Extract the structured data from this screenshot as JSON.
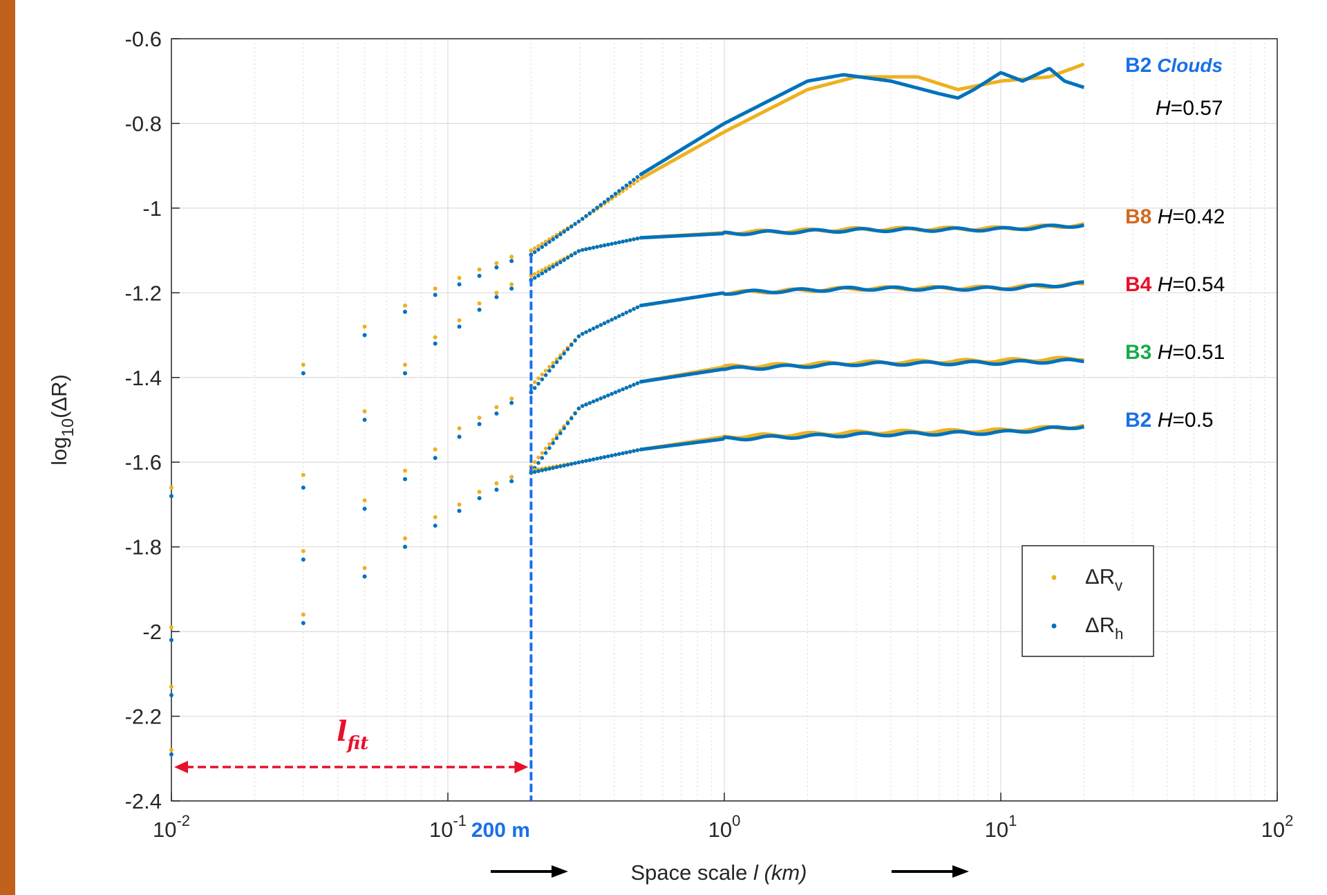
{
  "colors": {
    "sidebar": "#c0601a",
    "v_series": "#edb120",
    "h_series": "#0072bd",
    "label_b2": "#1a6fe8",
    "label_b8": "#d2691e",
    "label_b4": "#e8102a",
    "label_b3": "#1aaa4a",
    "cutoff": "#1a6fe8",
    "lfit": "#e8102a"
  },
  "chart_data": {
    "type": "scatter",
    "xscale": "log",
    "xlim": [
      0.01,
      100
    ],
    "ylim": [
      -2.4,
      -0.6
    ],
    "grid": true,
    "xlabel": "Space scale",
    "xlabel_var": "l",
    "xlabel_unit": "(km)",
    "ylabel": "log",
    "ylabel_sub": "10",
    "ylabel_arg": "(ΔR)",
    "x_tick_labels": [
      {
        "value": 0.01,
        "base": "10",
        "exp": "-2"
      },
      {
        "value": 0.1,
        "base": "10",
        "exp": "-1"
      },
      {
        "value": 1,
        "base": "10",
        "exp": "0"
      },
      {
        "value": 10,
        "base": "10",
        "exp": "1"
      },
      {
        "value": 100,
        "base": "10",
        "exp": "2"
      }
    ],
    "y_ticks": [
      "-0.6",
      "-0.8",
      "-1",
      "-1.2",
      "-1.4",
      "-1.6",
      "-1.8",
      "-2",
      "-2.2",
      "-2.4"
    ],
    "legend": {
      "placement": "lower-right",
      "entries": [
        {
          "base": "ΔR",
          "sub": "v",
          "series": "v"
        },
        {
          "base": "ΔR",
          "sub": "h",
          "series": "h"
        }
      ]
    },
    "cutoff": {
      "x": 0.2,
      "label": "200 m"
    },
    "lfit": {
      "x_from": 0.01,
      "x_to": 0.2,
      "y": -2.32,
      "label_main": "l",
      "label_sub": "fit"
    },
    "series": [
      {
        "band": "B2",
        "desc": "Clouds",
        "H": "0.57",
        "v": [
          [
            0.01,
            -1.66
          ],
          [
            0.03,
            -1.37
          ],
          [
            0.05,
            -1.28
          ],
          [
            0.07,
            -1.23
          ],
          [
            0.09,
            -1.19
          ],
          [
            0.11,
            -1.165
          ],
          [
            0.13,
            -1.145
          ],
          [
            0.15,
            -1.13
          ],
          [
            0.17,
            -1.115
          ],
          [
            0.2,
            -1.1
          ],
          [
            0.3,
            -1.03
          ],
          [
            0.5,
            -0.93
          ],
          [
            1,
            -0.82
          ],
          [
            2,
            -0.72
          ],
          [
            3,
            -0.69
          ],
          [
            5,
            -0.69
          ],
          [
            7,
            -0.72
          ],
          [
            10,
            -0.7
          ],
          [
            15,
            -0.69
          ],
          [
            20,
            -0.66
          ]
        ],
        "h": [
          [
            0.01,
            -1.68
          ],
          [
            0.03,
            -1.39
          ],
          [
            0.05,
            -1.3
          ],
          [
            0.07,
            -1.245
          ],
          [
            0.09,
            -1.205
          ],
          [
            0.11,
            -1.18
          ],
          [
            0.13,
            -1.16
          ],
          [
            0.15,
            -1.14
          ],
          [
            0.17,
            -1.125
          ],
          [
            0.2,
            -1.11
          ],
          [
            0.3,
            -1.03
          ],
          [
            0.5,
            -0.92
          ],
          [
            1,
            -0.8
          ],
          [
            2,
            -0.7
          ],
          [
            2.7,
            -0.685
          ],
          [
            4,
            -0.7
          ],
          [
            6,
            -0.73
          ],
          [
            7,
            -0.74
          ],
          [
            8,
            -0.72
          ],
          [
            10,
            -0.68
          ],
          [
            12,
            -0.7
          ],
          [
            15,
            -0.67
          ],
          [
            17,
            -0.7
          ],
          [
            20,
            -0.715
          ]
        ]
      },
      {
        "band": "B8",
        "desc": "",
        "H": "0.42",
        "v": [
          [
            0.01,
            -1.99
          ],
          [
            0.03,
            -1.63
          ],
          [
            0.05,
            -1.48
          ],
          [
            0.07,
            -1.37
          ],
          [
            0.09,
            -1.305
          ],
          [
            0.11,
            -1.265
          ],
          [
            0.13,
            -1.225
          ],
          [
            0.15,
            -1.2
          ],
          [
            0.17,
            -1.18
          ],
          [
            0.2,
            -1.16
          ],
          [
            0.3,
            -1.1
          ],
          [
            0.5,
            -1.07
          ],
          [
            1,
            -1.058
          ],
          [
            3,
            -1.05
          ],
          [
            10,
            -1.048
          ],
          [
            20,
            -1.04
          ]
        ],
        "h": [
          [
            0.01,
            -2.02
          ],
          [
            0.03,
            -1.66
          ],
          [
            0.05,
            -1.5
          ],
          [
            0.07,
            -1.39
          ],
          [
            0.09,
            -1.32
          ],
          [
            0.11,
            -1.28
          ],
          [
            0.13,
            -1.24
          ],
          [
            0.15,
            -1.21
          ],
          [
            0.17,
            -1.19
          ],
          [
            0.2,
            -1.17
          ],
          [
            0.3,
            -1.1
          ],
          [
            0.5,
            -1.07
          ],
          [
            1,
            -1.06
          ],
          [
            3,
            -1.052
          ],
          [
            10,
            -1.05
          ],
          [
            20,
            -1.04
          ]
        ]
      },
      {
        "band": "B4",
        "desc": "",
        "H": "0.54",
        "v": [
          [
            0.01,
            -2.13
          ],
          [
            0.03,
            -1.81
          ],
          [
            0.05,
            -1.69
          ],
          [
            0.07,
            -1.62
          ],
          [
            0.09,
            -1.57
          ],
          [
            0.11,
            -1.52
          ],
          [
            0.13,
            -1.495
          ],
          [
            0.15,
            -1.47
          ],
          [
            0.17,
            -1.45
          ],
          [
            0.2,
            -1.42
          ],
          [
            0.3,
            -1.3
          ],
          [
            0.5,
            -1.23
          ],
          [
            1,
            -1.2
          ],
          [
            3,
            -1.19
          ],
          [
            10,
            -1.188
          ],
          [
            20,
            -1.18
          ]
        ],
        "h": [
          [
            0.01,
            -2.15
          ],
          [
            0.03,
            -1.83
          ],
          [
            0.05,
            -1.71
          ],
          [
            0.07,
            -1.64
          ],
          [
            0.09,
            -1.59
          ],
          [
            0.11,
            -1.54
          ],
          [
            0.13,
            -1.51
          ],
          [
            0.15,
            -1.485
          ],
          [
            0.17,
            -1.46
          ],
          [
            0.2,
            -1.435
          ],
          [
            0.3,
            -1.3
          ],
          [
            0.5,
            -1.23
          ],
          [
            1,
            -1.2
          ],
          [
            3,
            -1.19
          ],
          [
            10,
            -1.19
          ],
          [
            20,
            -1.178
          ]
        ]
      },
      {
        "band": "B3",
        "desc": "",
        "H": "0.51",
        "v": [
          [
            0.01,
            -2.28
          ],
          [
            0.03,
            -1.96
          ],
          [
            0.05,
            -1.85
          ],
          [
            0.07,
            -1.78
          ],
          [
            0.09,
            -1.73
          ],
          [
            0.11,
            -1.7
          ],
          [
            0.13,
            -1.67
          ],
          [
            0.15,
            -1.65
          ],
          [
            0.17,
            -1.635
          ],
          [
            0.2,
            -1.61
          ],
          [
            0.3,
            -1.47
          ],
          [
            0.5,
            -1.41
          ],
          [
            1,
            -1.375
          ],
          [
            3,
            -1.365
          ],
          [
            10,
            -1.36
          ],
          [
            20,
            -1.355
          ]
        ],
        "h": [
          [
            0.01,
            -2.29
          ],
          [
            0.03,
            -1.98
          ],
          [
            0.05,
            -1.87
          ],
          [
            0.07,
            -1.8
          ],
          [
            0.09,
            -1.75
          ],
          [
            0.11,
            -1.715
          ],
          [
            0.13,
            -1.685
          ],
          [
            0.15,
            -1.665
          ],
          [
            0.17,
            -1.645
          ],
          [
            0.2,
            -1.625
          ],
          [
            0.3,
            -1.47
          ],
          [
            0.5,
            -1.41
          ],
          [
            1,
            -1.38
          ],
          [
            3,
            -1.368
          ],
          [
            10,
            -1.365
          ],
          [
            20,
            -1.36
          ]
        ]
      },
      {
        "band": "B2",
        "desc": "",
        "H": "0.5",
        "v": [
          [
            0.2,
            -1.62
          ],
          [
            0.3,
            -1.6
          ],
          [
            0.5,
            -1.57
          ],
          [
            1,
            -1.54
          ],
          [
            3,
            -1.53
          ],
          [
            10,
            -1.525
          ],
          [
            20,
            -1.515
          ]
        ],
        "h": [
          [
            0.2,
            -1.625
          ],
          [
            0.3,
            -1.6
          ],
          [
            0.5,
            -1.57
          ],
          [
            1,
            -1.545
          ],
          [
            3,
            -1.535
          ],
          [
            10,
            -1.53
          ],
          [
            20,
            -1.515
          ]
        ]
      }
    ]
  }
}
